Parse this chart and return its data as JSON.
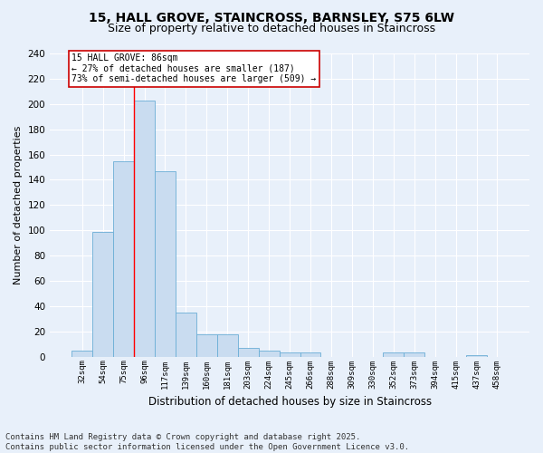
{
  "title_line1": "15, HALL GROVE, STAINCROSS, BARNSLEY, S75 6LW",
  "title_line2": "Size of property relative to detached houses in Staincross",
  "xlabel": "Distribution of detached houses by size in Staincross",
  "ylabel": "Number of detached properties",
  "categories": [
    "32sqm",
    "54sqm",
    "75sqm",
    "96sqm",
    "117sqm",
    "139sqm",
    "160sqm",
    "181sqm",
    "203sqm",
    "224sqm",
    "245sqm",
    "266sqm",
    "288sqm",
    "309sqm",
    "330sqm",
    "352sqm",
    "373sqm",
    "394sqm",
    "415sqm",
    "437sqm",
    "458sqm"
  ],
  "values": [
    5,
    99,
    155,
    203,
    147,
    35,
    18,
    18,
    7,
    5,
    3,
    3,
    0,
    0,
    0,
    3,
    3,
    0,
    0,
    1,
    0
  ],
  "bar_color": "#c9dcf0",
  "bar_edge_color": "#6baed6",
  "red_line_x": 3.0,
  "annotation_text": "15 HALL GROVE: 86sqm\n← 27% of detached houses are smaller (187)\n73% of semi-detached houses are larger (509) →",
  "annotation_box_facecolor": "#ffffff",
  "annotation_box_edgecolor": "#cc0000",
  "ylim": [
    0,
    240
  ],
  "yticks": [
    0,
    20,
    40,
    60,
    80,
    100,
    120,
    140,
    160,
    180,
    200,
    220,
    240
  ],
  "footer_line1": "Contains HM Land Registry data © Crown copyright and database right 2025.",
  "footer_line2": "Contains public sector information licensed under the Open Government Licence v3.0.",
  "bg_color": "#e8f0fa",
  "plot_bg_color": "#e8f0fa",
  "grid_color": "#ffffff",
  "title_fontsize": 10,
  "subtitle_fontsize": 9,
  "footer_fontsize": 6.5,
  "annotation_fontsize": 7,
  "ylabel_fontsize": 8,
  "xlabel_fontsize": 8.5
}
